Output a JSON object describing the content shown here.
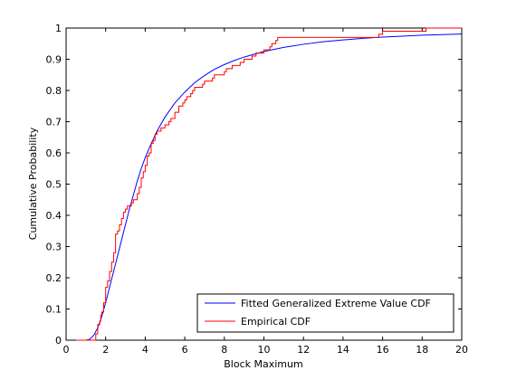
{
  "chart_data": {
    "type": "line",
    "xlabel": "Block Maximum",
    "ylabel": "Cumulative Probability",
    "xlim": [
      0,
      20
    ],
    "ylim": [
      0,
      1
    ],
    "xticks": [
      "0",
      "2",
      "4",
      "6",
      "8",
      "10",
      "12",
      "14",
      "16",
      "18",
      "20"
    ],
    "yticks": [
      "0",
      "0.1",
      "0.2",
      "0.3",
      "0.4",
      "0.5",
      "0.6",
      "0.7",
      "0.8",
      "0.9",
      "1"
    ],
    "grid": false,
    "legend_position": "bottom-right",
    "series": [
      {
        "name": "Fitted Generalized Extreme Value CDF",
        "color": "#0000ff",
        "style": "line",
        "x": [
          0.5,
          1.0,
          1.2,
          1.4,
          1.6,
          1.8,
          2.0,
          2.2,
          2.4,
          2.6,
          2.8,
          3.0,
          3.2,
          3.4,
          3.6,
          3.8,
          4.0,
          4.3,
          4.6,
          5.0,
          5.5,
          6.0,
          6.5,
          7.0,
          7.5,
          8.0,
          8.5,
          9.0,
          10.0,
          11.0,
          12.0,
          13.0,
          14.0,
          15.0,
          16.0,
          17.0,
          18.0,
          19.0,
          20.0
        ],
        "y": [
          0.0,
          0.0,
          0.003,
          0.016,
          0.04,
          0.075,
          0.12,
          0.17,
          0.22,
          0.27,
          0.32,
          0.37,
          0.42,
          0.465,
          0.51,
          0.55,
          0.585,
          0.63,
          0.67,
          0.715,
          0.76,
          0.795,
          0.825,
          0.848,
          0.868,
          0.883,
          0.896,
          0.907,
          0.925,
          0.938,
          0.948,
          0.956,
          0.962,
          0.967,
          0.971,
          0.974,
          0.977,
          0.979,
          0.981
        ]
      },
      {
        "name": "Empirical CDF",
        "color": "#ff0000",
        "style": "step",
        "x": [
          0.5,
          1.5,
          1.6,
          1.7,
          1.75,
          1.8,
          1.9,
          2.0,
          2.1,
          2.2,
          2.3,
          2.4,
          2.5,
          2.6,
          2.7,
          2.8,
          2.9,
          3.0,
          3.1,
          3.2,
          3.3,
          3.4,
          3.6,
          3.7,
          3.8,
          3.9,
          4.0,
          4.1,
          4.2,
          4.3,
          4.4,
          4.5,
          4.6,
          4.8,
          5.0,
          5.2,
          5.3,
          5.5,
          5.7,
          5.9,
          6.0,
          6.1,
          6.3,
          6.4,
          6.5,
          6.9,
          7.0,
          7.4,
          7.5,
          8.0,
          8.1,
          8.4,
          8.8,
          9.0,
          9.4,
          9.6,
          10.0,
          10.3,
          10.4,
          10.6,
          10.7,
          15.8,
          16.0,
          18.2
        ],
        "y": [
          0.0,
          0.02,
          0.05,
          0.06,
          0.08,
          0.09,
          0.12,
          0.17,
          0.19,
          0.22,
          0.25,
          0.28,
          0.34,
          0.35,
          0.37,
          0.39,
          0.41,
          0.42,
          0.43,
          0.43,
          0.44,
          0.45,
          0.47,
          0.49,
          0.52,
          0.54,
          0.56,
          0.59,
          0.6,
          0.63,
          0.64,
          0.66,
          0.67,
          0.68,
          0.69,
          0.7,
          0.71,
          0.73,
          0.75,
          0.76,
          0.77,
          0.78,
          0.79,
          0.8,
          0.81,
          0.82,
          0.83,
          0.84,
          0.85,
          0.86,
          0.87,
          0.88,
          0.89,
          0.9,
          0.91,
          0.92,
          0.93,
          0.94,
          0.95,
          0.96,
          0.97,
          0.98,
          0.99,
          1.0
        ]
      }
    ]
  }
}
